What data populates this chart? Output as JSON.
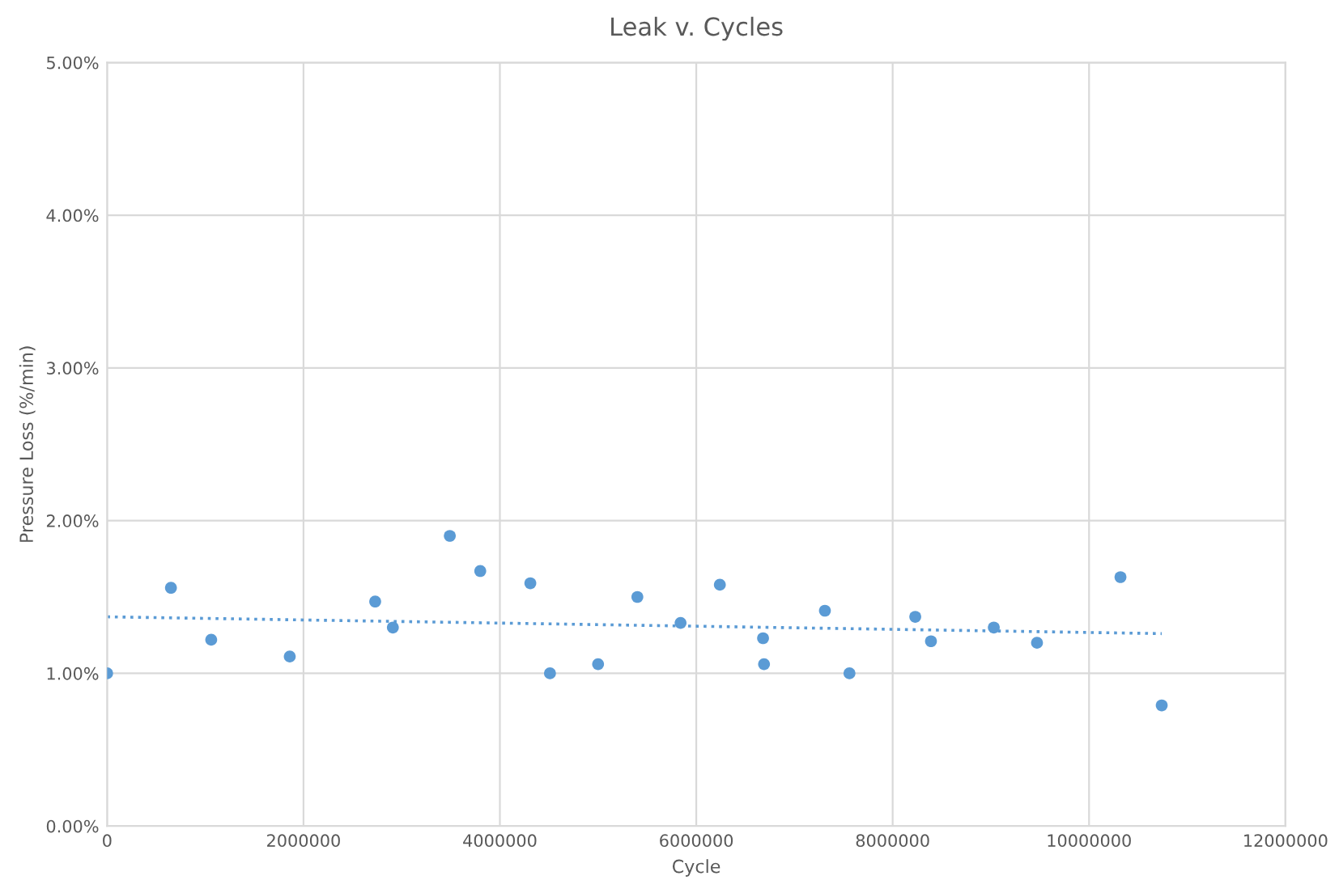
{
  "chart_data": {
    "type": "scatter",
    "title": "Leak v. Cycles",
    "xlabel": "Cycle",
    "ylabel": "Pressure Loss (%/min)",
    "series": [
      {
        "color": "#5b9bd5",
        "marker": "circle",
        "x": [
          0,
          650000,
          1060000,
          1860000,
          2730000,
          2910000,
          3490000,
          3800000,
          4310000,
          4510000,
          5000000,
          5400000,
          5840000,
          6240000,
          6680000,
          6690000,
          7310000,
          7560000,
          8230000,
          8390000,
          9030000,
          9470000,
          10320000,
          10740000
        ],
        "values": [
          1.0,
          1.56,
          1.22,
          1.11,
          1.47,
          1.3,
          1.9,
          1.67,
          1.59,
          1.0,
          1.06,
          1.5,
          1.33,
          1.58,
          1.23,
          1.06,
          1.41,
          1.0,
          1.37,
          1.21,
          1.3,
          1.2,
          1.63,
          0.79
        ]
      },
      {
        "type": "line",
        "color": "#5b9bd5",
        "line_style": "dotted",
        "marker": "none",
        "x": [
          0,
          10740000
        ],
        "values": [
          1.37,
          1.26
        ]
      }
    ],
    "xlim": [
      0,
      12000000
    ],
    "xticks": [
      0,
      2000000,
      4000000,
      6000000,
      8000000,
      10000000,
      12000000
    ],
    "ylim": [
      0,
      5
    ],
    "yticks": [
      {
        "value": 0,
        "label": "0.00%"
      },
      {
        "value": 1,
        "label": "1.00%"
      },
      {
        "value": 2,
        "label": "2.00%"
      },
      {
        "value": 3,
        "label": "3.00%"
      },
      {
        "value": 4,
        "label": "4.00%"
      },
      {
        "value": 5,
        "label": "5.00%"
      }
    ],
    "grid": true,
    "legend": false
  }
}
